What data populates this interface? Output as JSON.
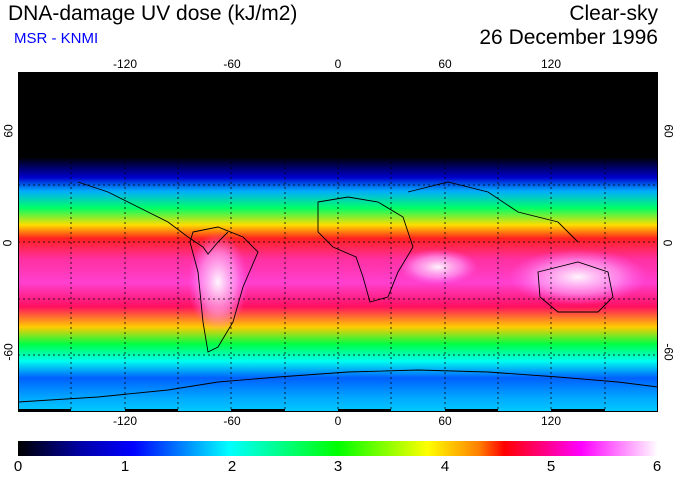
{
  "header": {
    "title": "DNA-damage UV dose (kJ/m2)",
    "subtitle": "MSR - KNMI",
    "sky_condition": "Clear-sky",
    "date": "26 December 1996"
  },
  "map": {
    "longitude_ticks": [
      "-120",
      "-60",
      "0",
      "60",
      "120"
    ],
    "latitude_ticks_left": [
      "60",
      "0",
      "-60"
    ],
    "latitude_ticks_right": [
      "60",
      "0",
      "-60"
    ],
    "lon_range": [
      -180,
      180
    ],
    "lat_range": [
      -90,
      90
    ],
    "grid_step_deg": 30
  },
  "colorbar": {
    "ticks": [
      "0",
      "1",
      "2",
      "3",
      "4",
      "5",
      "6"
    ],
    "range": [
      0,
      6
    ],
    "colors": [
      "#000000",
      "#0000ff",
      "#00ffff",
      "#00ff00",
      "#ffff00",
      "#ff0000",
      "#ff00ff",
      "#ffffff"
    ]
  }
}
